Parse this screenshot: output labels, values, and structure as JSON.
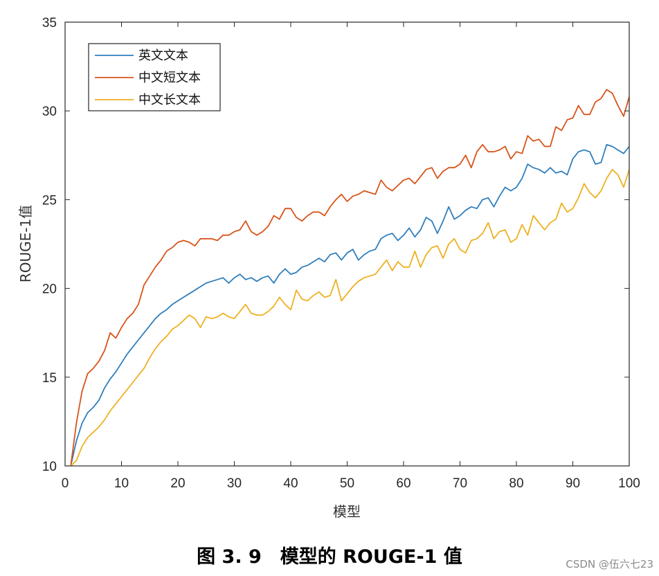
{
  "caption": "图 3. 9　模型的 ROUGE-1 值",
  "watermark": "CSDN @伍六七23",
  "colors": {
    "english": "#2f7ebc",
    "chinese_short": "#d95319",
    "chinese_long": "#edb120"
  },
  "chart_data": {
    "type": "line",
    "title": "",
    "xlabel": "模型",
    "ylabel": "ROUGE-1值",
    "xlim": [
      0,
      100
    ],
    "ylim": [
      10,
      35
    ],
    "xticks": [
      0,
      10,
      20,
      30,
      40,
      50,
      60,
      70,
      80,
      90,
      100
    ],
    "yticks": [
      10,
      15,
      20,
      25,
      30,
      35
    ],
    "grid": false,
    "legend_position": "top-left",
    "x": [
      1,
      2,
      3,
      4,
      5,
      6,
      7,
      8,
      9,
      10,
      11,
      12,
      13,
      14,
      15,
      16,
      17,
      18,
      19,
      20,
      21,
      22,
      23,
      24,
      25,
      26,
      27,
      28,
      29,
      30,
      31,
      32,
      33,
      34,
      35,
      36,
      37,
      38,
      39,
      40,
      41,
      42,
      43,
      44,
      45,
      46,
      47,
      48,
      49,
      50,
      51,
      52,
      53,
      54,
      55,
      56,
      57,
      58,
      59,
      60,
      61,
      62,
      63,
      64,
      65,
      66,
      67,
      68,
      69,
      70,
      71,
      72,
      73,
      74,
      75,
      76,
      77,
      78,
      79,
      80,
      81,
      82,
      83,
      84,
      85,
      86,
      87,
      88,
      89,
      90,
      91,
      92,
      93,
      94,
      95,
      96,
      97,
      98,
      99,
      100
    ],
    "series": [
      {
        "name": "英文文本",
        "color": "#2f7ebc",
        "values": [
          10.0,
          11.4,
          12.4,
          13.0,
          13.3,
          13.7,
          14.4,
          14.9,
          15.3,
          15.8,
          16.3,
          16.7,
          17.1,
          17.5,
          17.9,
          18.3,
          18.6,
          18.8,
          19.1,
          19.3,
          19.5,
          19.7,
          19.9,
          20.1,
          20.3,
          20.4,
          20.5,
          20.6,
          20.3,
          20.6,
          20.8,
          20.5,
          20.6,
          20.4,
          20.6,
          20.7,
          20.3,
          20.8,
          21.1,
          20.8,
          20.9,
          21.2,
          21.3,
          21.5,
          21.7,
          21.5,
          21.9,
          22.0,
          21.6,
          22.0,
          22.2,
          21.6,
          21.9,
          22.1,
          22.2,
          22.8,
          23.0,
          23.1,
          22.7,
          23.0,
          23.4,
          22.9,
          23.3,
          24.0,
          23.8,
          23.1,
          23.8,
          24.6,
          23.9,
          24.1,
          24.4,
          24.6,
          24.5,
          25.0,
          25.1,
          24.6,
          25.2,
          25.7,
          25.5,
          25.7,
          26.2,
          27.0,
          26.8,
          26.7,
          26.5,
          26.8,
          26.5,
          26.6,
          26.4,
          27.3,
          27.7,
          27.8,
          27.7,
          27.0,
          27.1,
          28.1,
          28.0,
          27.8,
          27.6,
          28.0
        ]
      },
      {
        "name": "中文短文本",
        "color": "#d95319",
        "values": [
          10.0,
          12.4,
          14.2,
          15.2,
          15.5,
          15.9,
          16.5,
          17.5,
          17.2,
          17.8,
          18.3,
          18.6,
          19.1,
          20.2,
          20.7,
          21.2,
          21.6,
          22.1,
          22.3,
          22.6,
          22.7,
          22.6,
          22.4,
          22.8,
          22.8,
          22.8,
          22.7,
          23.0,
          23.0,
          23.2,
          23.3,
          23.8,
          23.2,
          23.0,
          23.2,
          23.5,
          24.1,
          23.9,
          24.5,
          24.5,
          24.0,
          23.8,
          24.1,
          24.3,
          24.3,
          24.1,
          24.6,
          25.0,
          25.3,
          24.9,
          25.2,
          25.3,
          25.5,
          25.4,
          25.3,
          26.1,
          25.7,
          25.5,
          25.8,
          26.1,
          26.2,
          25.9,
          26.3,
          26.7,
          26.8,
          26.2,
          26.6,
          26.8,
          26.8,
          27.0,
          27.5,
          26.8,
          27.7,
          28.1,
          27.7,
          27.7,
          27.8,
          28.0,
          27.3,
          27.7,
          27.6,
          28.6,
          28.3,
          28.4,
          28.0,
          28.0,
          29.1,
          28.9,
          29.5,
          29.6,
          30.3,
          29.8,
          29.8,
          30.5,
          30.7,
          31.2,
          31.0,
          30.3,
          29.7,
          30.8
        ]
      },
      {
        "name": "中文长文本",
        "color": "#edb120",
        "values": [
          10.0,
          10.3,
          11.1,
          11.6,
          11.9,
          12.2,
          12.6,
          13.1,
          13.5,
          13.9,
          14.3,
          14.7,
          15.1,
          15.5,
          16.1,
          16.6,
          17.0,
          17.3,
          17.7,
          17.9,
          18.2,
          18.5,
          18.3,
          17.8,
          18.4,
          18.3,
          18.4,
          18.6,
          18.4,
          18.3,
          18.7,
          19.1,
          18.6,
          18.5,
          18.5,
          18.7,
          19.0,
          19.5,
          19.1,
          18.8,
          19.9,
          19.4,
          19.3,
          19.6,
          19.8,
          19.5,
          19.6,
          20.5,
          19.3,
          19.7,
          20.1,
          20.4,
          20.6,
          20.7,
          20.8,
          21.2,
          21.6,
          21.0,
          21.5,
          21.2,
          21.2,
          22.1,
          21.2,
          21.9,
          22.3,
          22.4,
          21.7,
          22.5,
          22.8,
          22.2,
          22.0,
          22.7,
          22.8,
          23.1,
          23.7,
          22.8,
          23.2,
          23.3,
          22.6,
          22.8,
          23.6,
          23.0,
          24.1,
          23.7,
          23.3,
          23.7,
          23.9,
          24.8,
          24.3,
          24.5,
          25.1,
          25.9,
          25.4,
          25.1,
          25.5,
          26.2,
          26.7,
          26.4,
          25.7,
          26.7
        ]
      }
    ]
  }
}
